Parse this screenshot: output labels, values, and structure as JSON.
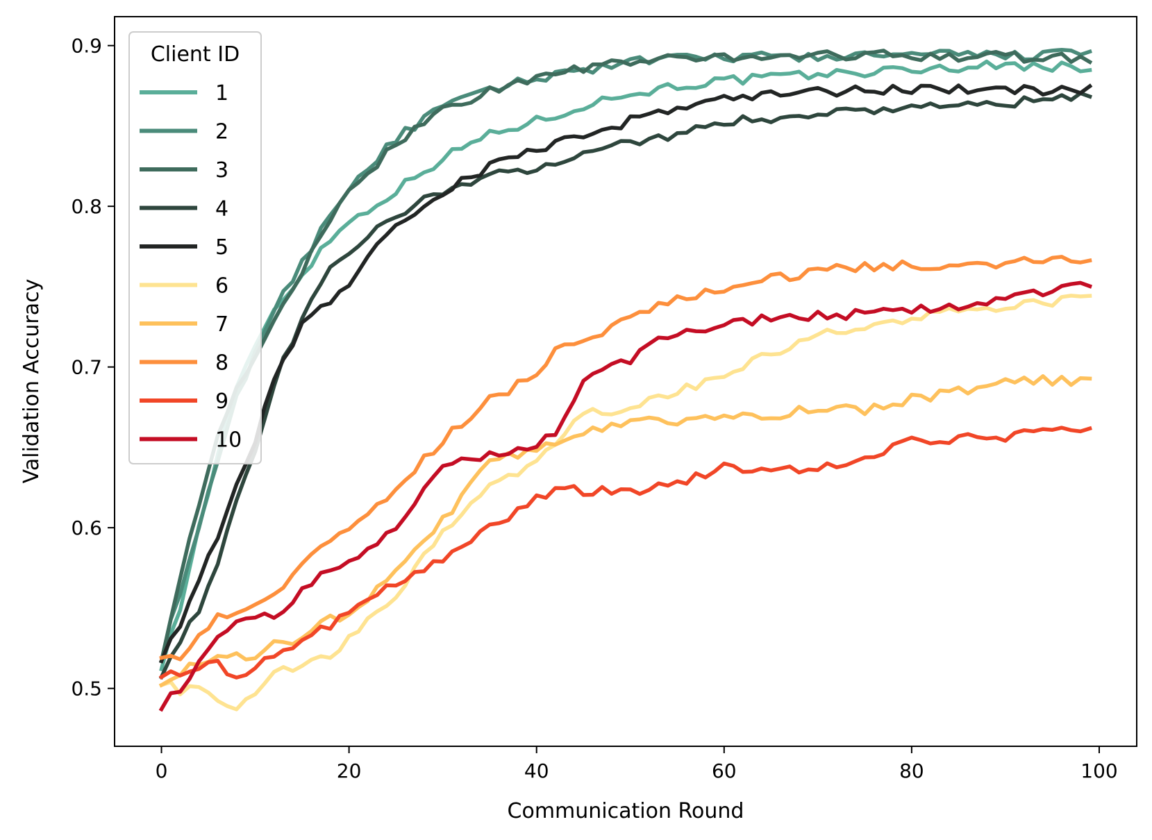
{
  "chart_data": {
    "type": "line",
    "title": "",
    "xlabel": "Communication Round",
    "ylabel": "Validation Accuracy",
    "xlim": [
      -5,
      104
    ],
    "ylim": [
      0.464,
      0.918
    ],
    "xticks": [
      0,
      20,
      40,
      60,
      80,
      100
    ],
    "xtick_labels": [
      "0",
      "20",
      "40",
      "60",
      "80",
      "100"
    ],
    "yticks": [
      0.5,
      0.6,
      0.7,
      0.8,
      0.9
    ],
    "ytick_labels": [
      "0.5",
      "0.6",
      "0.7",
      "0.8",
      "0.9"
    ],
    "grid": false,
    "legend": {
      "title": "Client ID",
      "placement": "upper-left"
    },
    "x_range": [
      0,
      99
    ],
    "series": [
      {
        "name": "1",
        "color": "#5aae99",
        "keypoints": [
          [
            0,
            0.515
          ],
          [
            2,
            0.55
          ],
          [
            4,
            0.6
          ],
          [
            6,
            0.645
          ],
          [
            8,
            0.685
          ],
          [
            10,
            0.715
          ],
          [
            12,
            0.735
          ],
          [
            15,
            0.758
          ],
          [
            18,
            0.78
          ],
          [
            20,
            0.79
          ],
          [
            25,
            0.81
          ],
          [
            30,
            0.83
          ],
          [
            35,
            0.845
          ],
          [
            40,
            0.853
          ],
          [
            45,
            0.863
          ],
          [
            50,
            0.87
          ],
          [
            55,
            0.875
          ],
          [
            60,
            0.878
          ],
          [
            70,
            0.882
          ],
          [
            80,
            0.885
          ],
          [
            90,
            0.888
          ],
          [
            99,
            0.886
          ]
        ]
      },
      {
        "name": "2",
        "color": "#4a8b7a",
        "keypoints": [
          [
            0,
            0.52
          ],
          [
            2,
            0.56
          ],
          [
            4,
            0.6
          ],
          [
            6,
            0.64
          ],
          [
            8,
            0.68
          ],
          [
            10,
            0.71
          ],
          [
            12,
            0.735
          ],
          [
            15,
            0.765
          ],
          [
            18,
            0.795
          ],
          [
            20,
            0.812
          ],
          [
            25,
            0.842
          ],
          [
            30,
            0.862
          ],
          [
            35,
            0.872
          ],
          [
            40,
            0.88
          ],
          [
            45,
            0.885
          ],
          [
            50,
            0.89
          ],
          [
            60,
            0.893
          ],
          [
            70,
            0.893
          ],
          [
            80,
            0.894
          ],
          [
            90,
            0.894
          ],
          [
            99,
            0.895
          ]
        ]
      },
      {
        "name": "3",
        "color": "#3e6b5c",
        "keypoints": [
          [
            0,
            0.52
          ],
          [
            2,
            0.57
          ],
          [
            4,
            0.615
          ],
          [
            6,
            0.655
          ],
          [
            8,
            0.685
          ],
          [
            10,
            0.705
          ],
          [
            12,
            0.73
          ],
          [
            15,
            0.76
          ],
          [
            18,
            0.79
          ],
          [
            20,
            0.808
          ],
          [
            25,
            0.84
          ],
          [
            30,
            0.86
          ],
          [
            35,
            0.872
          ],
          [
            40,
            0.88
          ],
          [
            45,
            0.886
          ],
          [
            50,
            0.89
          ],
          [
            60,
            0.893
          ],
          [
            70,
            0.894
          ],
          [
            80,
            0.894
          ],
          [
            90,
            0.893
          ],
          [
            99,
            0.892
          ]
        ]
      },
      {
        "name": "4",
        "color": "#2e463d",
        "keypoints": [
          [
            0,
            0.51
          ],
          [
            2,
            0.53
          ],
          [
            4,
            0.55
          ],
          [
            6,
            0.58
          ],
          [
            8,
            0.615
          ],
          [
            10,
            0.645
          ],
          [
            12,
            0.69
          ],
          [
            15,
            0.73
          ],
          [
            18,
            0.76
          ],
          [
            20,
            0.77
          ],
          [
            25,
            0.795
          ],
          [
            30,
            0.81
          ],
          [
            35,
            0.818
          ],
          [
            40,
            0.825
          ],
          [
            45,
            0.833
          ],
          [
            50,
            0.84
          ],
          [
            55,
            0.845
          ],
          [
            60,
            0.852
          ],
          [
            70,
            0.858
          ],
          [
            80,
            0.862
          ],
          [
            90,
            0.864
          ],
          [
            99,
            0.868
          ]
        ]
      },
      {
        "name": "5",
        "color": "#222524",
        "keypoints": [
          [
            0,
            0.52
          ],
          [
            2,
            0.54
          ],
          [
            4,
            0.565
          ],
          [
            6,
            0.595
          ],
          [
            8,
            0.625
          ],
          [
            10,
            0.655
          ],
          [
            12,
            0.695
          ],
          [
            15,
            0.725
          ],
          [
            18,
            0.742
          ],
          [
            20,
            0.752
          ],
          [
            25,
            0.79
          ],
          [
            30,
            0.808
          ],
          [
            35,
            0.825
          ],
          [
            40,
            0.835
          ],
          [
            45,
            0.845
          ],
          [
            50,
            0.853
          ],
          [
            55,
            0.862
          ],
          [
            60,
            0.867
          ],
          [
            65,
            0.87
          ],
          [
            70,
            0.871
          ],
          [
            80,
            0.873
          ],
          [
            90,
            0.872
          ],
          [
            99,
            0.872
          ]
        ]
      },
      {
        "name": "6",
        "color": "#fee391",
        "keypoints": [
          [
            0,
            0.505
          ],
          [
            2,
            0.498
          ],
          [
            4,
            0.5
          ],
          [
            6,
            0.493
          ],
          [
            8,
            0.485
          ],
          [
            10,
            0.497
          ],
          [
            12,
            0.508
          ],
          [
            15,
            0.515
          ],
          [
            18,
            0.52
          ],
          [
            20,
            0.53
          ],
          [
            25,
            0.558
          ],
          [
            30,
            0.598
          ],
          [
            35,
            0.625
          ],
          [
            40,
            0.64
          ],
          [
            45,
            0.67
          ],
          [
            50,
            0.675
          ],
          [
            55,
            0.685
          ],
          [
            60,
            0.695
          ],
          [
            65,
            0.708
          ],
          [
            70,
            0.72
          ],
          [
            75,
            0.725
          ],
          [
            80,
            0.73
          ],
          [
            85,
            0.735
          ],
          [
            90,
            0.737
          ],
          [
            95,
            0.74
          ],
          [
            99,
            0.745
          ]
        ]
      },
      {
        "name": "7",
        "color": "#fec15c",
        "keypoints": [
          [
            0,
            0.505
          ],
          [
            2,
            0.51
          ],
          [
            4,
            0.515
          ],
          [
            6,
            0.52
          ],
          [
            8,
            0.52
          ],
          [
            10,
            0.518
          ],
          [
            12,
            0.528
          ],
          [
            15,
            0.53
          ],
          [
            18,
            0.545
          ],
          [
            20,
            0.545
          ],
          [
            25,
            0.575
          ],
          [
            30,
            0.605
          ],
          [
            35,
            0.64
          ],
          [
            40,
            0.65
          ],
          [
            45,
            0.66
          ],
          [
            50,
            0.665
          ],
          [
            55,
            0.667
          ],
          [
            60,
            0.668
          ],
          [
            65,
            0.67
          ],
          [
            70,
            0.675
          ],
          [
            75,
            0.673
          ],
          [
            80,
            0.68
          ],
          [
            85,
            0.685
          ],
          [
            90,
            0.69
          ],
          [
            95,
            0.692
          ],
          [
            99,
            0.691
          ]
        ]
      },
      {
        "name": "8",
        "color": "#fd8f3c",
        "keypoints": [
          [
            0,
            0.522
          ],
          [
            2,
            0.52
          ],
          [
            4,
            0.535
          ],
          [
            6,
            0.545
          ],
          [
            8,
            0.545
          ],
          [
            10,
            0.55
          ],
          [
            12,
            0.558
          ],
          [
            15,
            0.58
          ],
          [
            18,
            0.59
          ],
          [
            20,
            0.6
          ],
          [
            25,
            0.625
          ],
          [
            30,
            0.655
          ],
          [
            35,
            0.68
          ],
          [
            40,
            0.695
          ],
          [
            42,
            0.71
          ],
          [
            45,
            0.715
          ],
          [
            50,
            0.733
          ],
          [
            55,
            0.742
          ],
          [
            60,
            0.748
          ],
          [
            65,
            0.755
          ],
          [
            70,
            0.76
          ],
          [
            75,
            0.762
          ],
          [
            80,
            0.763
          ],
          [
            85,
            0.764
          ],
          [
            90,
            0.765
          ],
          [
            95,
            0.766
          ],
          [
            99,
            0.768
          ]
        ]
      },
      {
        "name": "9",
        "color": "#f14627",
        "keypoints": [
          [
            0,
            0.51
          ],
          [
            2,
            0.51
          ],
          [
            4,
            0.515
          ],
          [
            6,
            0.515
          ],
          [
            8,
            0.505
          ],
          [
            10,
            0.515
          ],
          [
            12,
            0.52
          ],
          [
            15,
            0.53
          ],
          [
            18,
            0.54
          ],
          [
            20,
            0.55
          ],
          [
            25,
            0.565
          ],
          [
            30,
            0.58
          ],
          [
            35,
            0.6
          ],
          [
            40,
            0.618
          ],
          [
            42,
            0.625
          ],
          [
            45,
            0.622
          ],
          [
            50,
            0.623
          ],
          [
            55,
            0.628
          ],
          [
            60,
            0.638
          ],
          [
            65,
            0.635
          ],
          [
            70,
            0.637
          ],
          [
            75,
            0.642
          ],
          [
            80,
            0.654
          ],
          [
            85,
            0.655
          ],
          [
            90,
            0.657
          ],
          [
            95,
            0.66
          ],
          [
            99,
            0.661
          ]
        ]
      },
      {
        "name": "10",
        "color": "#c40d24",
        "keypoints": [
          [
            0,
            0.49
          ],
          [
            2,
            0.5
          ],
          [
            4,
            0.515
          ],
          [
            6,
            0.535
          ],
          [
            8,
            0.54
          ],
          [
            10,
            0.545
          ],
          [
            12,
            0.545
          ],
          [
            15,
            0.56
          ],
          [
            18,
            0.575
          ],
          [
            20,
            0.578
          ],
          [
            25,
            0.6
          ],
          [
            30,
            0.638
          ],
          [
            35,
            0.645
          ],
          [
            40,
            0.652
          ],
          [
            42,
            0.66
          ],
          [
            45,
            0.69
          ],
          [
            50,
            0.705
          ],
          [
            52,
            0.715
          ],
          [
            55,
            0.72
          ],
          [
            60,
            0.727
          ],
          [
            65,
            0.73
          ],
          [
            70,
            0.732
          ],
          [
            75,
            0.733
          ],
          [
            80,
            0.735
          ],
          [
            85,
            0.737
          ],
          [
            90,
            0.742
          ],
          [
            95,
            0.747
          ],
          [
            99,
            0.753
          ]
        ]
      }
    ]
  }
}
